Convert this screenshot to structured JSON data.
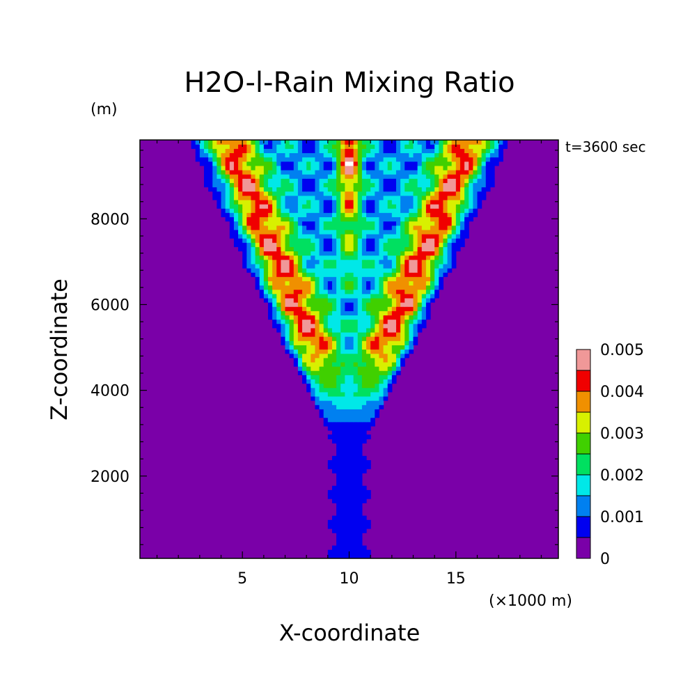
{
  "chart_data": {
    "type": "heatmap",
    "title": "H2O-l-Rain Mixing Ratio",
    "xlabel": "X-coordinate",
    "ylabel": "Z-coordinate",
    "x_unit": "(×1000 m)",
    "y_unit": "(m)",
    "time_label": "t=3600 sec",
    "xlim": [
      0.2,
      19.8
    ],
    "ylim": [
      80,
      9840
    ],
    "x_ticks": [
      {
        "value": 5,
        "label": "5"
      },
      {
        "value": 10,
        "label": "10"
      },
      {
        "value": 15,
        "label": "15"
      }
    ],
    "x_minor_step": 1,
    "y_ticks": [
      {
        "value": 2000,
        "label": "2000"
      },
      {
        "value": 4000,
        "label": "4000"
      },
      {
        "value": 6000,
        "label": "6000"
      },
      {
        "value": 8000,
        "label": "8000"
      }
    ],
    "y_minor_step": 400,
    "colorbar": {
      "levels": [
        0,
        0.0005,
        0.001,
        0.0015,
        0.002,
        0.0025,
        0.003,
        0.0035,
        0.004,
        0.0045,
        0.005
      ],
      "colors": [
        "#7a00a8",
        "#0000f0",
        "#0080f0",
        "#00e8e8",
        "#00e060",
        "#40d000",
        "#d8f000",
        "#f09000",
        "#f00000",
        "#f09898"
      ],
      "labels": [
        {
          "value": 0,
          "label": "0"
        },
        {
          "value": 0.001,
          "label": "0.001"
        },
        {
          "value": 0.002,
          "label": "0.002"
        },
        {
          "value": 0.003,
          "label": "0.003"
        },
        {
          "value": 0.004,
          "label": "0.004"
        },
        {
          "value": 0.005,
          "label": "0.005"
        }
      ]
    },
    "background_color": "#7a00a8",
    "over_color": "#ffffff"
  }
}
